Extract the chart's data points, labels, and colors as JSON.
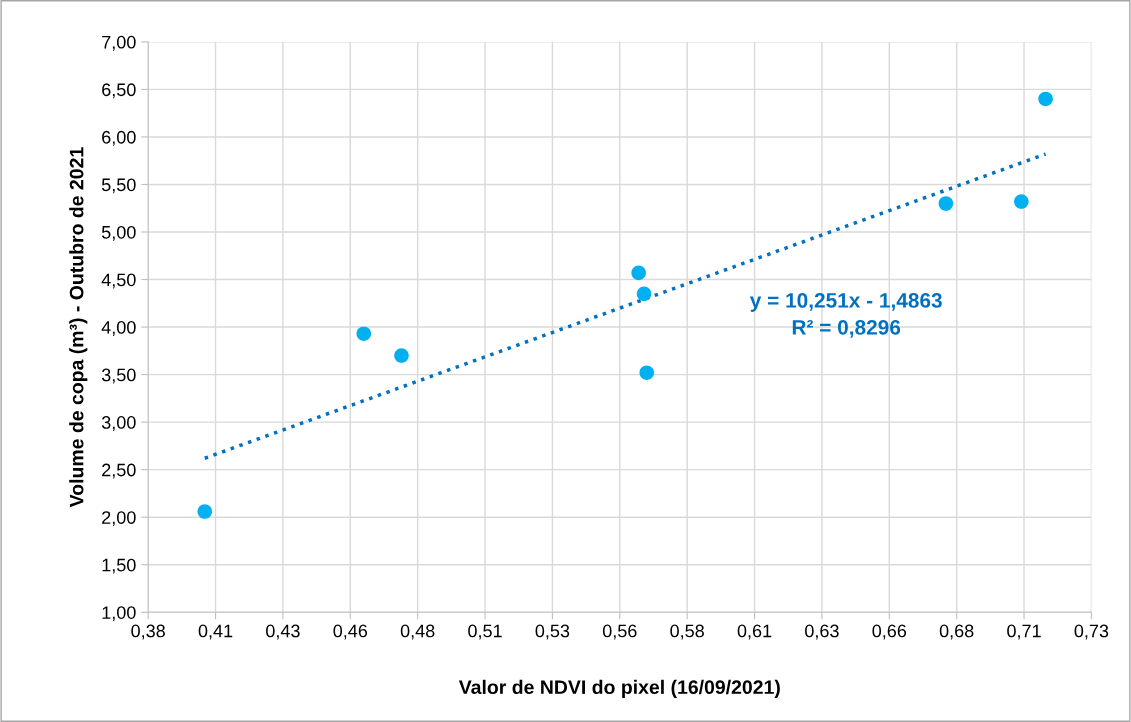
{
  "chart_data": {
    "type": "scatter",
    "xlabel": "Valor de NDVI do pixel (16/09/2021)",
    "ylabel": "Volume de copa (m³) - Outubro de 2021",
    "series": [
      {
        "color": "#00b0f0",
        "marker": "circle",
        "x": [
          0.401,
          0.46,
          0.474,
          0.562,
          0.564,
          0.565,
          0.676,
          0.704,
          0.713
        ],
        "values": [
          2.06,
          3.93,
          3.7,
          4.57,
          4.35,
          3.52,
          5.3,
          5.32,
          6.4
        ]
      },
      {
        "type": "line",
        "color": "#0070c0",
        "line_style": "dotted",
        "x": [
          0.401,
          0.713
        ],
        "values": [
          2.62,
          5.82
        ]
      }
    ],
    "annotations": [
      "y = 10,251x - 1,4863\nR² = 0,8296"
    ],
    "xlim": [
      0.38,
      0.73
    ],
    "xticks": [
      {
        "value": 0.38,
        "label": "0,38"
      },
      {
        "value": 0.405,
        "label": "0,41"
      },
      {
        "value": 0.43,
        "label": "0,43"
      },
      {
        "value": 0.455,
        "label": "0,46"
      },
      {
        "value": 0.48,
        "label": "0,48"
      },
      {
        "value": 0.505,
        "label": "0,51"
      },
      {
        "value": 0.53,
        "label": "0,53"
      },
      {
        "value": 0.555,
        "label": "0,56"
      },
      {
        "value": 0.58,
        "label": "0,58"
      },
      {
        "value": 0.605,
        "label": "0,61"
      },
      {
        "value": 0.63,
        "label": "0,63"
      },
      {
        "value": 0.655,
        "label": "0,66"
      },
      {
        "value": 0.68,
        "label": "0,68"
      },
      {
        "value": 0.705,
        "label": "0,71"
      },
      {
        "value": 0.73,
        "label": "0,73"
      }
    ],
    "ylim": [
      1,
      7
    ],
    "yticks": [
      {
        "value": 1,
        "label": "1,00"
      },
      {
        "value": 1.5,
        "label": "1,50"
      },
      {
        "value": 2,
        "label": "2,00"
      },
      {
        "value": 2.5,
        "label": "2,50"
      },
      {
        "value": 3,
        "label": "3,00"
      },
      {
        "value": 3.5,
        "label": "3,50"
      },
      {
        "value": 4,
        "label": "4,00"
      },
      {
        "value": 4.5,
        "label": "4,50"
      },
      {
        "value": 5,
        "label": "5,00"
      },
      {
        "value": 5.5,
        "label": "5,50"
      },
      {
        "value": 6,
        "label": "6,00"
      },
      {
        "value": 6.5,
        "label": "6,50"
      },
      {
        "value": 7,
        "label": "7,00"
      }
    ],
    "grid": true,
    "legend": false
  }
}
